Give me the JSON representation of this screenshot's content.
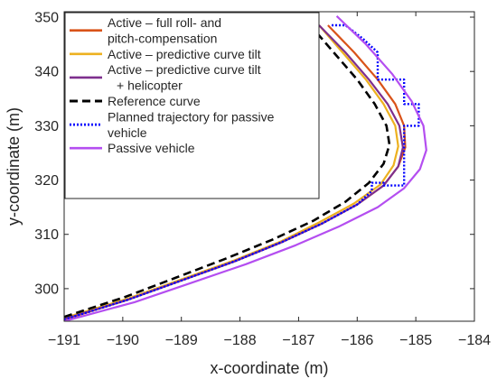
{
  "chart_data": {
    "type": "line",
    "xlabel": "x-coordinate (m)",
    "ylabel": "y-coordinate (m)",
    "xlim": [
      -191,
      -184
    ],
    "ylim": [
      294,
      351
    ],
    "xticks": [
      -191,
      -190,
      -189,
      -188,
      -187,
      -186,
      -185,
      -184
    ],
    "yticks": [
      300,
      310,
      320,
      330,
      340,
      350
    ],
    "xtick_labels": [
      "−191",
      "−190",
      "−189",
      "−188",
      "−187",
      "−186",
      "−185",
      "−184"
    ],
    "ytick_labels": [
      "300",
      "310",
      "320",
      "330",
      "340",
      "350"
    ],
    "grid": false,
    "legend_position": "top-left",
    "series": [
      {
        "name": "Active – full roll- and pitch-compensation",
        "legend_lines": [
          "Active – full roll- and",
          "pitch-compensation"
        ],
        "color": "#d95319",
        "style": "solid",
        "x": [
          -191,
          -189.9,
          -189.0,
          -188.1,
          -187.3,
          -186.6,
          -186.0,
          -185.55,
          -185.3,
          -185.18,
          -185.2,
          -185.35,
          -185.65,
          -186.05,
          -186.5
        ],
        "y": [
          294.3,
          298.0,
          301.5,
          305.0,
          308.5,
          312.0,
          315.5,
          319.0,
          322.5,
          326.0,
          330.0,
          334.0,
          338.5,
          343.5,
          348.5
        ]
      },
      {
        "name": "Active – predictive curve tilt",
        "legend_lines": [
          "Active – predictive curve tilt"
        ],
        "color": "#edb120",
        "style": "solid",
        "x": [
          -191,
          -189.9,
          -189.0,
          -188.1,
          -187.3,
          -186.65,
          -186.05,
          -185.6,
          -185.38,
          -185.3,
          -185.35,
          -185.55,
          -185.85,
          -186.25,
          -186.65
        ],
        "y": [
          294.6,
          298.2,
          301.7,
          305.2,
          308.7,
          312.2,
          315.7,
          319.2,
          322.7,
          326.2,
          330.0,
          334.0,
          338.5,
          343.5,
          348.5
        ]
      },
      {
        "name": "Active – predictive curve tilt + helicopter",
        "legend_lines": [
          "Active – predictive curve tilt",
          "+ helicopter"
        ],
        "color": "#7e2f8e",
        "style": "solid",
        "x": [
          -191,
          -189.9,
          -189.0,
          -188.1,
          -187.3,
          -186.6,
          -186.0,
          -185.55,
          -185.3,
          -185.22,
          -185.28,
          -185.48,
          -185.8,
          -186.2,
          -186.65
        ],
        "y": [
          294.4,
          298.0,
          301.5,
          305.0,
          308.5,
          312.0,
          315.5,
          319.0,
          322.5,
          326.0,
          330.0,
          334.0,
          338.5,
          343.5,
          348.5
        ]
      },
      {
        "name": "Reference curve",
        "legend_lines": [
          "Reference curve"
        ],
        "color": "#000000",
        "style": "dashed",
        "x": [
          -191,
          -189.95,
          -189.1,
          -188.25,
          -187.45,
          -186.75,
          -186.2,
          -185.8,
          -185.55,
          -185.45,
          -185.5,
          -185.7,
          -186.0,
          -186.4,
          -186.8
        ],
        "y": [
          294.8,
          298.5,
          302.0,
          305.5,
          309.0,
          312.5,
          316.0,
          319.5,
          323.0,
          326.5,
          330.0,
          334.0,
          338.5,
          343.5,
          348.5
        ]
      },
      {
        "name": "Planned trajectory for passive vehicle",
        "legend_lines": [
          "Planned trajectory for passive",
          "vehicle"
        ],
        "color": "#0000ff",
        "style": "dotted",
        "x": [
          -191,
          -189.9,
          -189.0,
          -188.1,
          -187.3,
          -186.6,
          -186.0,
          -185.75,
          -185.75,
          -185.55,
          -185.55,
          -185.2,
          -185.2,
          -185.2,
          -185.2,
          -184.95,
          -184.95,
          -185.2,
          -185.2,
          -185.65,
          -185.65,
          -185.9,
          -186.2,
          -186.45
        ],
        "y": [
          294.3,
          298.0,
          301.5,
          305.0,
          308.5,
          312.0,
          315.5,
          318.0,
          319.5,
          319.5,
          319.0,
          319.0,
          322.5,
          326.5,
          330.0,
          330.0,
          334.0,
          334.0,
          338.5,
          338.5,
          343.5,
          346.0,
          348.5,
          348.5
        ]
      },
      {
        "name": "Passive vehicle",
        "legend_lines": [
          "Passive vehicle"
        ],
        "color": "#b44ef0",
        "style": "solid",
        "x": [
          -191,
          -189.8,
          -188.85,
          -187.9,
          -187.05,
          -186.3,
          -185.65,
          -185.2,
          -184.93,
          -184.82,
          -184.87,
          -185.07,
          -185.4,
          -185.85,
          -186.35
        ],
        "y": [
          294.0,
          297.5,
          301.0,
          304.5,
          308.0,
          311.5,
          315.0,
          318.5,
          322.0,
          325.5,
          330.0,
          334.5,
          339.5,
          345.0,
          350.2
        ]
      }
    ]
  }
}
